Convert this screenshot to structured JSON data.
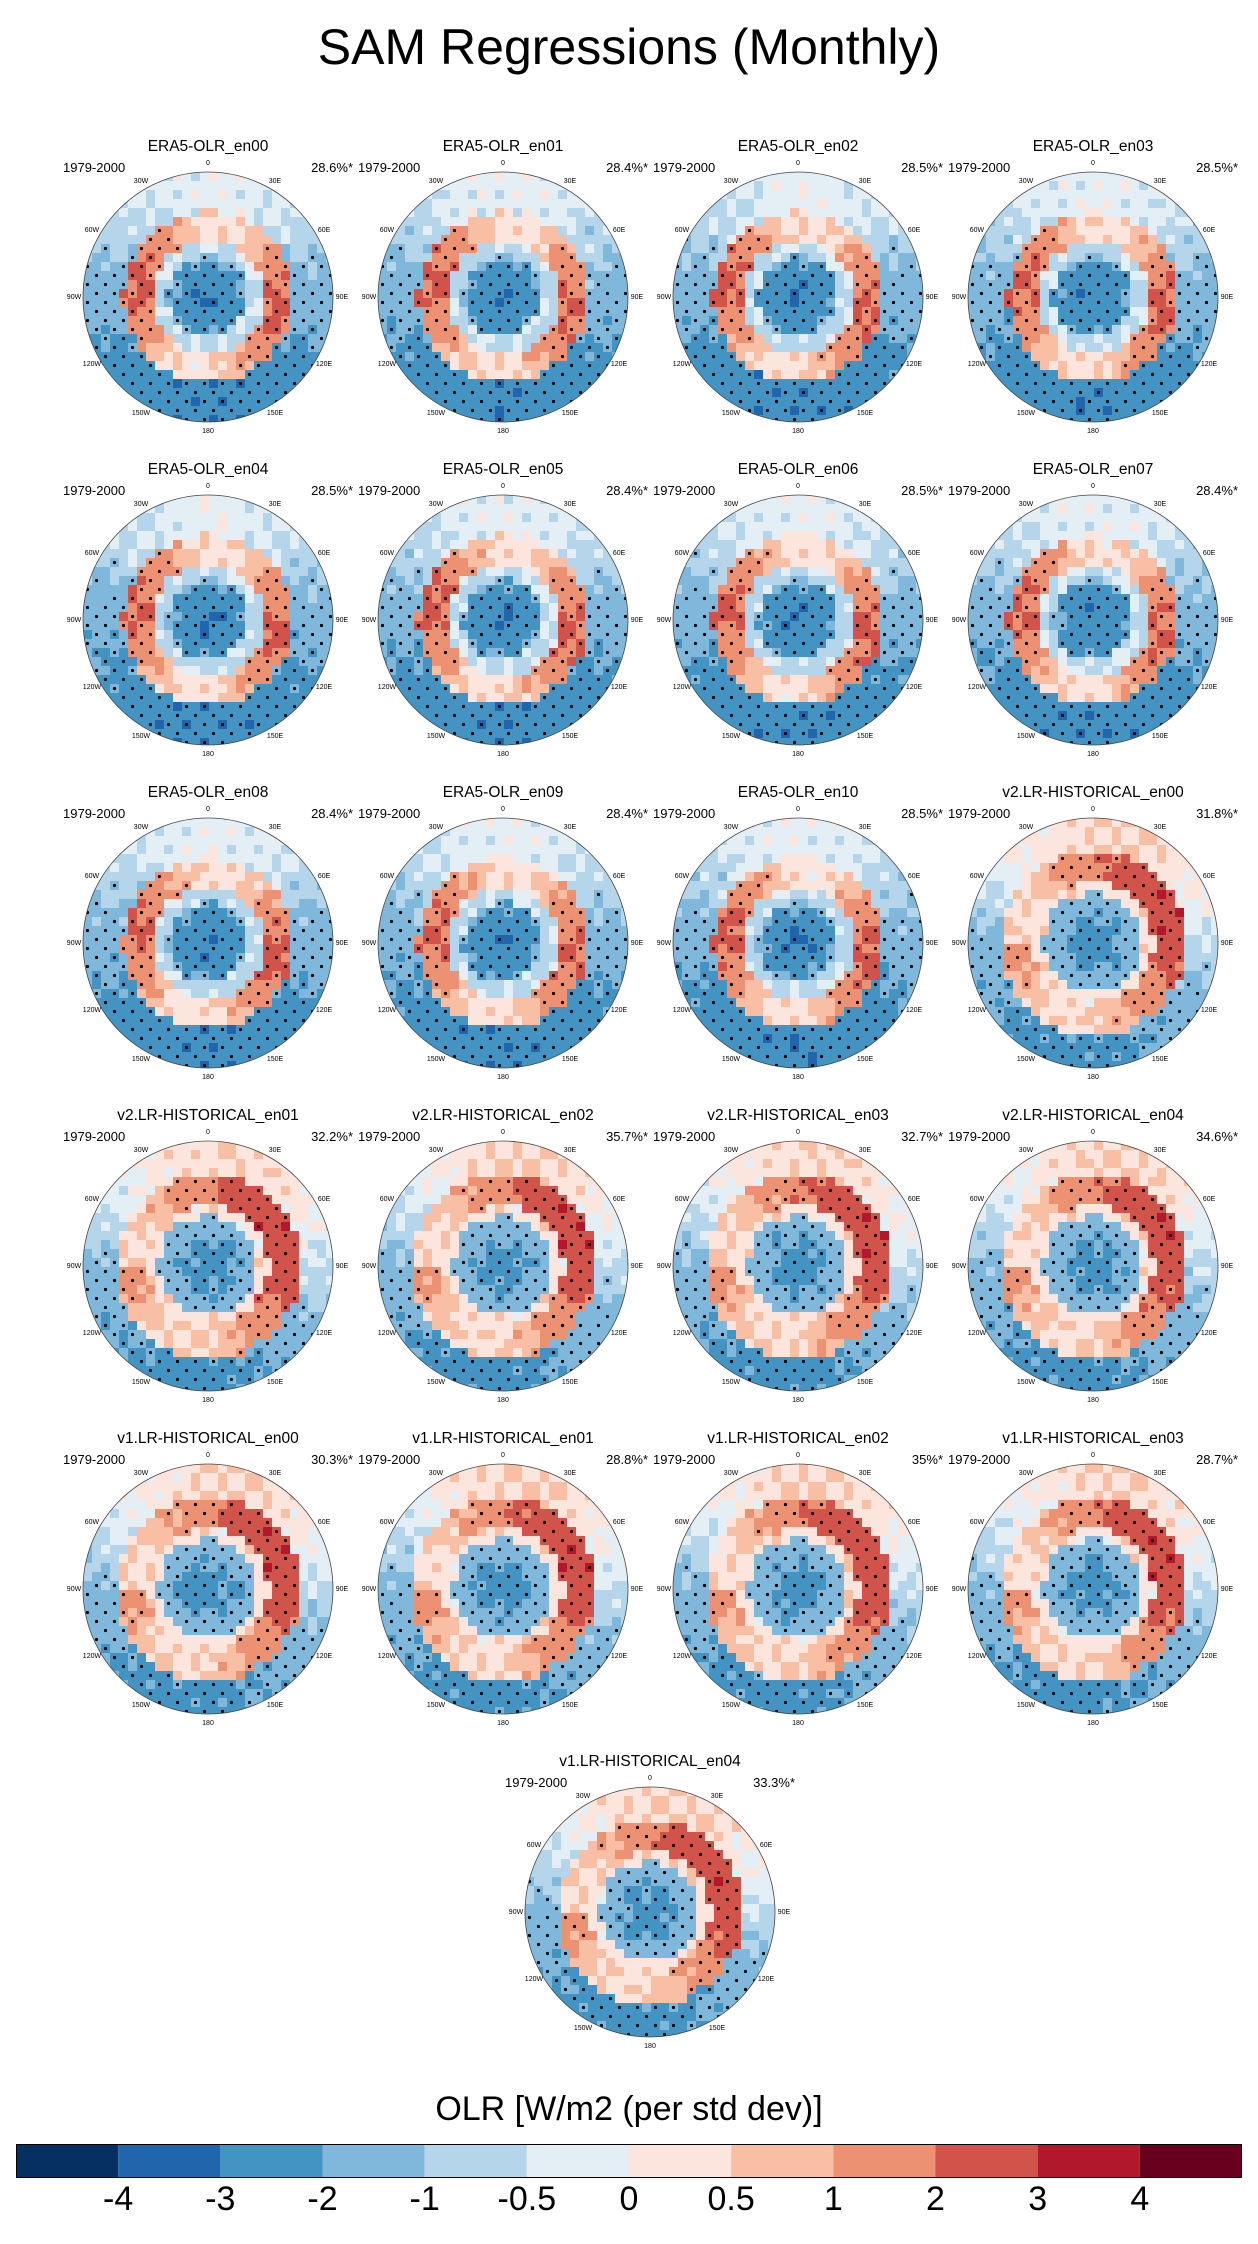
{
  "title": "SAM Regressions (Monthly)",
  "period": "1979-2000",
  "lon_labels": [
    "0",
    "30E",
    "60E",
    "90E",
    "120E",
    "150E",
    "180",
    "150W",
    "120W",
    "90W",
    "60W",
    "30W"
  ],
  "panels": [
    {
      "title": "ERA5-OLR_en00",
      "pct": "28.6%*",
      "pattern": "era5"
    },
    {
      "title": "ERA5-OLR_en01",
      "pct": "28.4%*",
      "pattern": "era5"
    },
    {
      "title": "ERA5-OLR_en02",
      "pct": "28.5%*",
      "pattern": "era5"
    },
    {
      "title": "ERA5-OLR_en03",
      "pct": "28.5%*",
      "pattern": "era5"
    },
    {
      "title": "ERA5-OLR_en04",
      "pct": "28.5%*",
      "pattern": "era5"
    },
    {
      "title": "ERA5-OLR_en05",
      "pct": "28.4%*",
      "pattern": "era5"
    },
    {
      "title": "ERA5-OLR_en06",
      "pct": "28.5%*",
      "pattern": "era5"
    },
    {
      "title": "ERA5-OLR_en07",
      "pct": "28.4%*",
      "pattern": "era5"
    },
    {
      "title": "ERA5-OLR_en08",
      "pct": "28.4%*",
      "pattern": "era5"
    },
    {
      "title": "ERA5-OLR_en09",
      "pct": "28.4%*",
      "pattern": "era5"
    },
    {
      "title": "ERA5-OLR_en10",
      "pct": "28.5%*",
      "pattern": "era5"
    },
    {
      "title": "v2.LR-HISTORICAL_en00",
      "pct": "31.8%*",
      "pattern": "model"
    },
    {
      "title": "v2.LR-HISTORICAL_en01",
      "pct": "32.2%*",
      "pattern": "model"
    },
    {
      "title": "v2.LR-HISTORICAL_en02",
      "pct": "35.7%*",
      "pattern": "model"
    },
    {
      "title": "v2.LR-HISTORICAL_en03",
      "pct": "32.7%*",
      "pattern": "model"
    },
    {
      "title": "v2.LR-HISTORICAL_en04",
      "pct": "34.6%*",
      "pattern": "model"
    },
    {
      "title": "v1.LR-HISTORICAL_en00",
      "pct": "30.3%*",
      "pattern": "model"
    },
    {
      "title": "v1.LR-HISTORICAL_en01",
      "pct": "28.8%*",
      "pattern": "model"
    },
    {
      "title": "v1.LR-HISTORICAL_en02",
      "pct": "35%*",
      "pattern": "model"
    },
    {
      "title": "v1.LR-HISTORICAL_en03",
      "pct": "28.7%*",
      "pattern": "model"
    },
    {
      "title": "v1.LR-HISTORICAL_en04",
      "pct": "33.3%*",
      "pattern": "model"
    }
  ],
  "colorbar": {
    "title": "OLR [W/m2 (per std dev)]",
    "tick_labels": [
      "-4",
      "-3",
      "-2",
      "-1",
      "-0.5",
      "0",
      "0.5",
      "1",
      "2",
      "3",
      "4"
    ],
    "colors": [
      "#053061",
      "#2166ac",
      "#4393c3",
      "#7fb8da",
      "#b5d6ea",
      "#e3eef5",
      "#fbe5dc",
      "#f8bfa4",
      "#ec9172",
      "#d1534a",
      "#b2182b",
      "#67001f"
    ]
  }
}
